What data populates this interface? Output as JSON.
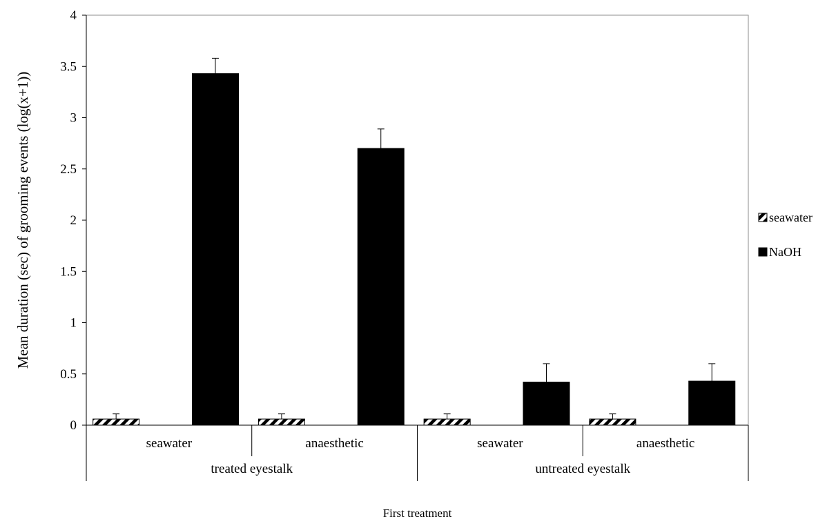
{
  "chart_data": {
    "type": "bar",
    "title": "",
    "xlabel": "First treatment",
    "ylabel": "Mean duration (sec) of grooming events (log(x+1))",
    "ylim": [
      0,
      4
    ],
    "y_ticks": [
      0,
      0.5,
      1,
      1.5,
      2,
      2.5,
      3,
      3.5,
      4
    ],
    "y_tick_labels": [
      "0",
      "0.5",
      "1",
      "1.5",
      "2",
      "2.5",
      "3",
      "3.5",
      "4"
    ],
    "categories": [
      "seawater",
      "anaesthetic",
      "seawater",
      "anaesthetic"
    ],
    "groups": [
      {
        "label": "treated eyestalk",
        "span": 2
      },
      {
        "label": "untreated eyestalk",
        "span": 2
      }
    ],
    "series": [
      {
        "name": "seawater",
        "color": "#000000",
        "pattern": "diagonal-hatch",
        "values": [
          0.06,
          0.06,
          0.06,
          0.06
        ],
        "error": [
          0.05,
          0.05,
          0.05,
          0.05
        ]
      },
      {
        "name": "NaOH",
        "color": "#000000",
        "pattern": "solid",
        "values": [
          3.43,
          2.7,
          0.42,
          0.43
        ],
        "error": [
          0.15,
          0.19,
          0.18,
          0.17
        ]
      }
    ],
    "legend_position": "right",
    "grid": false
  }
}
